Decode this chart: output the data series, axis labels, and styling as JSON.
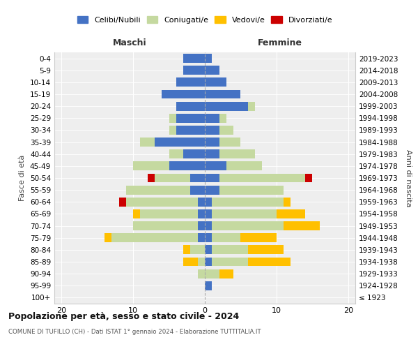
{
  "age_groups": [
    "100+",
    "95-99",
    "90-94",
    "85-89",
    "80-84",
    "75-79",
    "70-74",
    "65-69",
    "60-64",
    "55-59",
    "50-54",
    "45-49",
    "40-44",
    "35-39",
    "30-34",
    "25-29",
    "20-24",
    "15-19",
    "10-14",
    "5-9",
    "0-4"
  ],
  "birth_years": [
    "≤ 1923",
    "1924-1928",
    "1929-1933",
    "1934-1938",
    "1939-1943",
    "1944-1948",
    "1949-1953",
    "1954-1958",
    "1959-1963",
    "1964-1968",
    "1969-1973",
    "1974-1978",
    "1979-1983",
    "1984-1988",
    "1989-1993",
    "1994-1998",
    "1999-2003",
    "2004-2008",
    "2009-2013",
    "2014-2018",
    "2019-2023"
  ],
  "colors": {
    "celibi": "#4472c4",
    "coniugati": "#c5d9a0",
    "vedovi": "#ffc000",
    "divorziati": "#cc0000"
  },
  "maschi": {
    "celibi": [
      0,
      0,
      0,
      0,
      0,
      1,
      1,
      1,
      1,
      2,
      2,
      5,
      3,
      7,
      4,
      4,
      4,
      6,
      4,
      3,
      3
    ],
    "coniugati": [
      0,
      0,
      1,
      1,
      2,
      12,
      9,
      8,
      10,
      9,
      5,
      5,
      2,
      2,
      1,
      1,
      0,
      0,
      0,
      0,
      0
    ],
    "vedovi": [
      0,
      0,
      0,
      2,
      1,
      1,
      0,
      1,
      0,
      0,
      0,
      0,
      0,
      0,
      0,
      0,
      0,
      0,
      0,
      0,
      0
    ],
    "divorziati": [
      0,
      0,
      0,
      0,
      0,
      0,
      0,
      0,
      1,
      0,
      1,
      0,
      0,
      0,
      0,
      0,
      0,
      0,
      0,
      0,
      0
    ]
  },
  "femmine": {
    "celibi": [
      0,
      1,
      0,
      1,
      1,
      1,
      1,
      1,
      1,
      2,
      2,
      3,
      2,
      2,
      2,
      2,
      6,
      5,
      3,
      2,
      1
    ],
    "coniugati": [
      0,
      0,
      2,
      5,
      5,
      4,
      10,
      9,
      10,
      9,
      12,
      5,
      5,
      3,
      2,
      1,
      1,
      0,
      0,
      0,
      0
    ],
    "vedovi": [
      0,
      0,
      2,
      6,
      5,
      5,
      5,
      4,
      1,
      0,
      0,
      0,
      0,
      0,
      0,
      0,
      0,
      0,
      0,
      0,
      0
    ],
    "divorziati": [
      0,
      0,
      0,
      0,
      0,
      0,
      0,
      0,
      0,
      0,
      1,
      0,
      0,
      0,
      0,
      0,
      0,
      0,
      0,
      0,
      0
    ]
  },
  "xlim": [
    -21,
    21
  ],
  "xticks": [
    -20,
    -10,
    0,
    10,
    20
  ],
  "xticklabels": [
    "20",
    "10",
    "0",
    "10",
    "20"
  ],
  "title": "Popolazione per età, sesso e stato civile - 2024",
  "subtitle": "COMUNE DI TUFILLO (CH) - Dati ISTAT 1° gennaio 2024 - Elaborazione TUTTITALIA.IT",
  "ylabel_left": "Fasce di età",
  "ylabel_right": "Anni di nascita",
  "maschi_label": "Maschi",
  "femmine_label": "Femmine",
  "legend_labels": [
    "Celibi/Nubili",
    "Coniugati/e",
    "Vedovi/e",
    "Divorziati/e"
  ],
  "background_color": "#eeeeee"
}
